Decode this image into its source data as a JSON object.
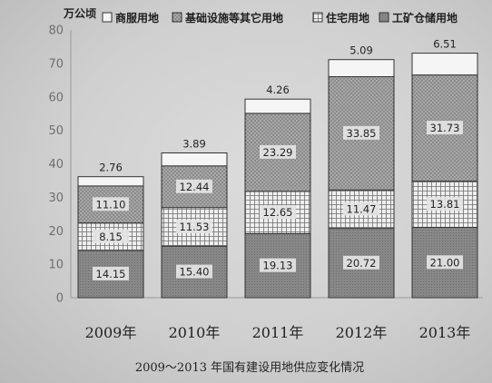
{
  "chart_data": {
    "type": "bar",
    "stacked": true,
    "caption": "2009～2013 年国有建设用地供应变化情况",
    "xlabel": "",
    "ylabel": "万公顷",
    "categories": [
      "2009年",
      "2010年",
      "2011年",
      "2012年",
      "2013年"
    ],
    "ylim": [
      0,
      80
    ],
    "yticks": [
      0,
      10,
      20,
      30,
      40,
      50,
      60,
      70,
      80
    ],
    "grid": false,
    "legend_position": "top",
    "series": [
      {
        "name": "商服用地",
        "values": [
          2.76,
          3.89,
          4.26,
          5.09,
          6.51
        ],
        "color": "#f5f5f5",
        "pattern": "plain"
      },
      {
        "name": "基础设施等其它用地",
        "values": [
          11.1,
          12.44,
          23.29,
          33.85,
          31.73
        ],
        "color": "#a6a6a6",
        "pattern": "dots"
      },
      {
        "name": "住宅用地",
        "values": [
          8.15,
          11.53,
          12.65,
          11.47,
          13.81
        ],
        "color": "#eeeeee",
        "pattern": "grid"
      },
      {
        "name": "工矿仓储用地",
        "values": [
          14.15,
          15.4,
          19.13,
          20.72,
          21.0
        ],
        "color": "#888888",
        "pattern": "speckle"
      }
    ]
  }
}
